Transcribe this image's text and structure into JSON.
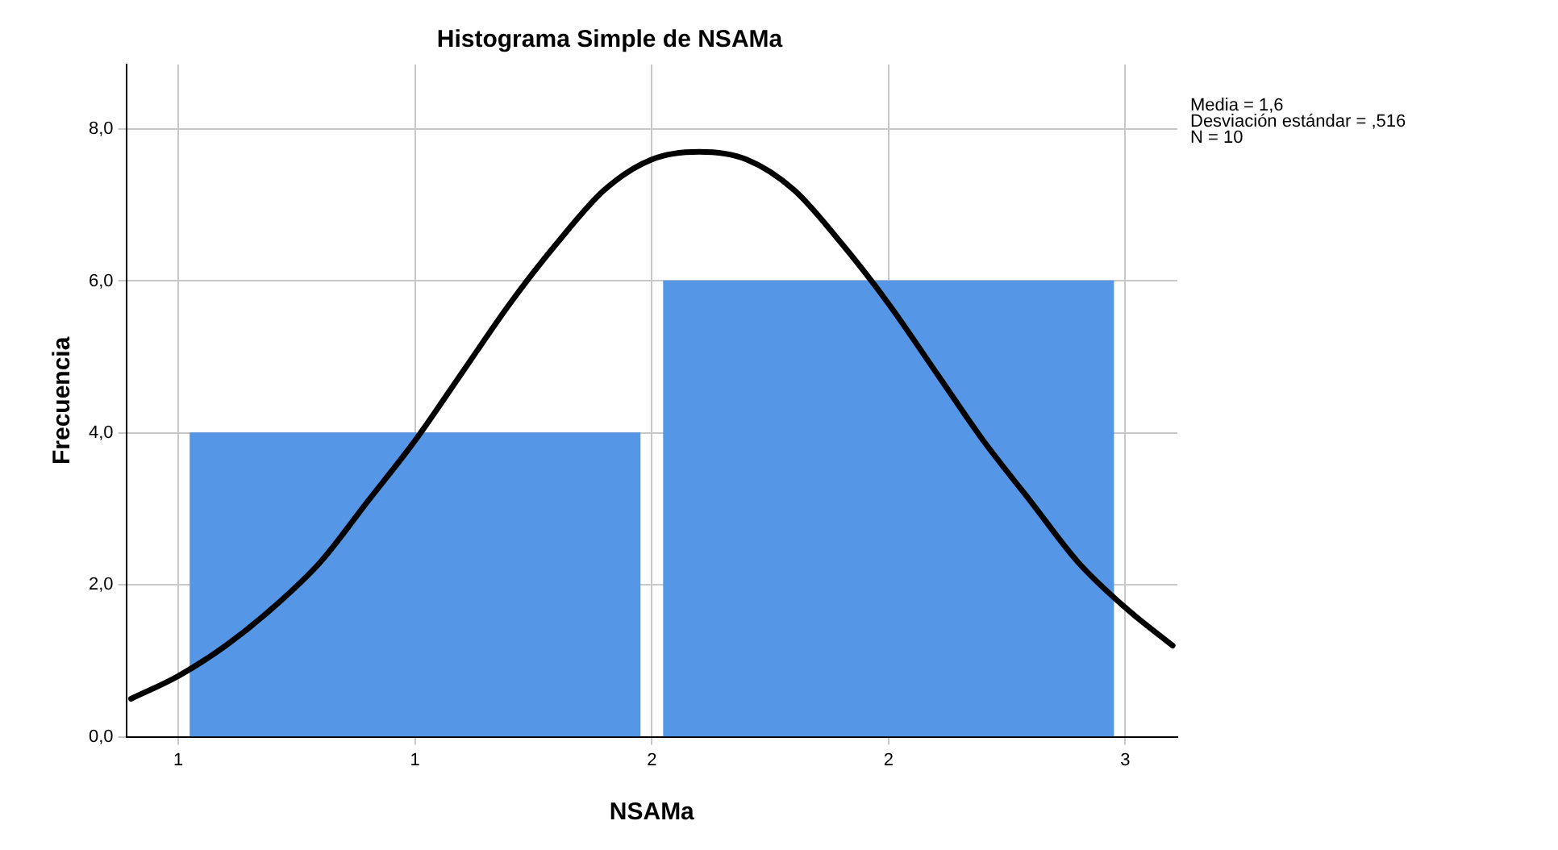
{
  "chart_data": {
    "type": "histogram",
    "title": "Histograma Simple de NSAMa",
    "xlabel": "NSAMa",
    "ylabel": "Frecuencia",
    "bins": [
      0.5,
      1.5,
      2.5
    ],
    "values": [
      4,
      6
    ],
    "color": "#5596e6",
    "series": [
      {
        "type": "line",
        "color": "#000000",
        "x": [
          0.4,
          0.5,
          0.6,
          0.7,
          0.8,
          0.9,
          1.0,
          1.1,
          1.2,
          1.3,
          1.4,
          1.5,
          1.6,
          1.7,
          1.8,
          1.9,
          2.0,
          2.1,
          2.2,
          2.3,
          2.4,
          2.5,
          2.6
        ],
        "values": [
          0.5,
          0.8,
          1.2,
          1.7,
          2.3,
          3.1,
          3.9,
          4.8,
          5.7,
          6.5,
          7.2,
          7.6,
          7.7,
          7.6,
          7.2,
          6.5,
          5.7,
          4.8,
          3.9,
          3.1,
          2.3,
          1.7,
          1.2
        ]
      }
    ],
    "xlim": [
      0.39,
      2.61
    ],
    "xticks": [
      {
        "value": 0.5,
        "label": "1"
      },
      {
        "value": 1,
        "label": "1"
      },
      {
        "value": 1.5,
        "label": "2"
      },
      {
        "value": 2,
        "label": "2"
      },
      {
        "value": 2.5,
        "label": "3"
      }
    ],
    "ylim": [
      0,
      8.85
    ],
    "yticks": [
      {
        "value": 0,
        "label": "0,0"
      },
      {
        "value": 2,
        "label": "2,0"
      },
      {
        "value": 4,
        "label": "4,0"
      },
      {
        "value": 6,
        "label": "6,0"
      },
      {
        "value": 8,
        "label": "8,0"
      }
    ],
    "grid": true,
    "legend": false,
    "marker": "none",
    "line_style": "solid",
    "annotations": [
      "Media = 1,6",
      "Desviación estándar = ,516",
      "N = 10"
    ]
  }
}
